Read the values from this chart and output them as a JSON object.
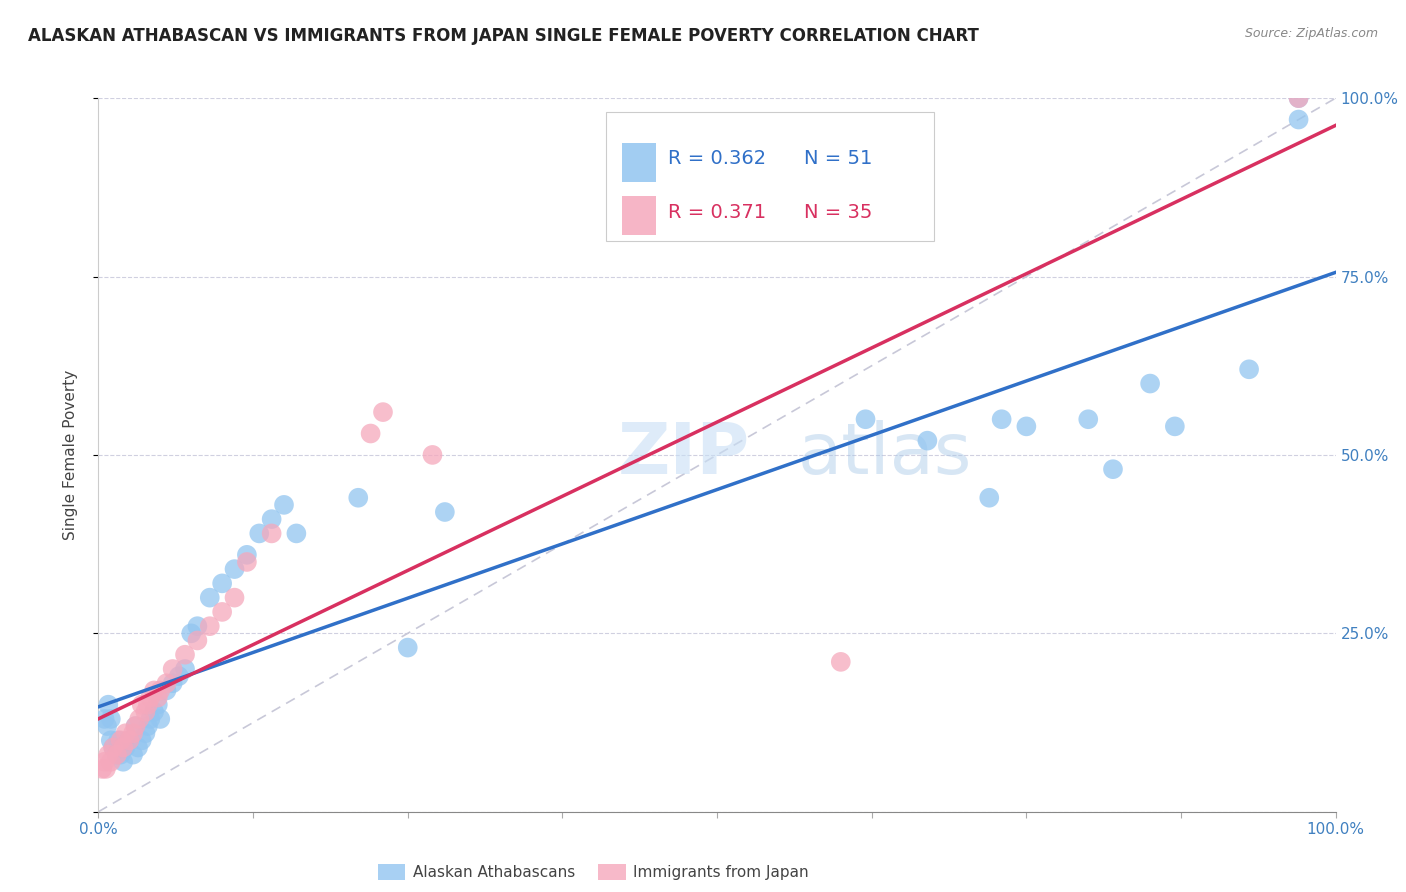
{
  "title": "ALASKAN ATHABASCAN VS IMMIGRANTS FROM JAPAN SINGLE FEMALE POVERTY CORRELATION CHART",
  "source": "Source: ZipAtlas.com",
  "ylabel": "Single Female Poverty",
  "legend_label1": "Alaskan Athabascans",
  "legend_label2": "Immigrants from Japan",
  "R1": "0.362",
  "N1": "51",
  "R2": "0.371",
  "N2": "35",
  "color_blue": "#92C5F0",
  "color_pink": "#F5A8BC",
  "color_line_blue": "#3070C8",
  "color_line_pink": "#D83060",
  "color_diagonal": "#c8c8d8",
  "background": "#ffffff",
  "grid_color": "#d0d0e0",
  "blue_x": [
    0.005,
    0.007,
    0.008,
    0.01,
    0.01,
    0.012,
    0.015,
    0.016,
    0.018,
    0.02,
    0.022,
    0.025,
    0.028,
    0.03,
    0.032,
    0.035,
    0.038,
    0.04,
    0.042,
    0.045,
    0.048,
    0.05,
    0.055,
    0.06,
    0.065,
    0.07,
    0.075,
    0.08,
    0.09,
    0.1,
    0.11,
    0.12,
    0.13,
    0.14,
    0.15,
    0.16,
    0.21,
    0.25,
    0.28,
    0.97,
    0.97,
    0.62,
    0.67,
    0.72,
    0.73,
    0.75,
    0.8,
    0.82,
    0.85,
    0.87,
    0.93
  ],
  "blue_y": [
    0.13,
    0.12,
    0.15,
    0.1,
    0.13,
    0.09,
    0.08,
    0.1,
    0.08,
    0.07,
    0.09,
    0.1,
    0.08,
    0.12,
    0.09,
    0.1,
    0.11,
    0.12,
    0.13,
    0.14,
    0.15,
    0.13,
    0.17,
    0.18,
    0.19,
    0.2,
    0.25,
    0.26,
    0.3,
    0.32,
    0.34,
    0.36,
    0.39,
    0.41,
    0.43,
    0.39,
    0.44,
    0.23,
    0.42,
    1.0,
    0.97,
    0.55,
    0.52,
    0.44,
    0.55,
    0.54,
    0.55,
    0.48,
    0.6,
    0.54,
    0.62
  ],
  "pink_x": [
    0.003,
    0.005,
    0.006,
    0.008,
    0.01,
    0.012,
    0.015,
    0.018,
    0.02,
    0.022,
    0.025,
    0.028,
    0.03,
    0.033,
    0.035,
    0.038,
    0.04,
    0.042,
    0.045,
    0.048,
    0.05,
    0.055,
    0.06,
    0.07,
    0.08,
    0.09,
    0.1,
    0.11,
    0.12,
    0.14,
    0.22,
    0.23,
    0.27,
    0.6,
    0.97
  ],
  "pink_y": [
    0.06,
    0.07,
    0.06,
    0.08,
    0.07,
    0.09,
    0.08,
    0.1,
    0.09,
    0.11,
    0.1,
    0.11,
    0.12,
    0.13,
    0.15,
    0.14,
    0.15,
    0.16,
    0.17,
    0.16,
    0.17,
    0.18,
    0.2,
    0.22,
    0.24,
    0.26,
    0.28,
    0.3,
    0.35,
    0.39,
    0.53,
    0.56,
    0.5,
    0.21,
    1.0
  ],
  "watermark_zip": "ZIP",
  "watermark_atlas": "atlas",
  "xlim": [
    0,
    1
  ],
  "ylim": [
    0,
    1
  ]
}
